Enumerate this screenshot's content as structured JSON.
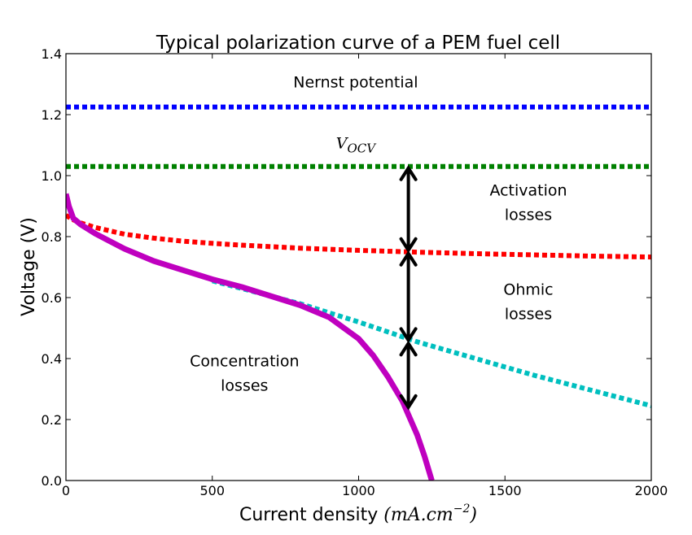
{
  "chart_data": {
    "type": "line",
    "title": "Typical polarization curve of a PEM fuel cell",
    "xlabel": "Current density",
    "xlabel_unit": "mA.cm",
    "xlabel_unit_exp": "−2",
    "ylabel": "Voltage (V)",
    "xlim": [
      0,
      2000
    ],
    "ylim": [
      0.0,
      1.4
    ],
    "xticks": [
      0,
      500,
      1000,
      1500,
      2000
    ],
    "yticks": [
      0.0,
      0.2,
      0.4,
      0.6,
      0.8,
      1.0,
      1.2,
      1.4
    ],
    "ytick_labels": [
      "0.0",
      "0.2",
      "0.4",
      "0.6",
      "0.8",
      "1.0",
      "1.2",
      "1.4"
    ],
    "grid": false,
    "series": [
      {
        "color": "#0000ff",
        "style": "dotted",
        "x": [
          0,
          2000
        ],
        "y": [
          1.225,
          1.225
        ]
      },
      {
        "color": "#008000",
        "style": "dotted",
        "x": [
          0,
          2000
        ],
        "y": [
          1.03,
          1.03
        ]
      },
      {
        "color": "#ff0000",
        "style": "dotted",
        "x": [
          0,
          25,
          50,
          100,
          200,
          300,
          400,
          500,
          600,
          800,
          1000,
          1200,
          1400,
          1600,
          1800,
          2000
        ],
        "y": [
          0.87,
          0.855,
          0.845,
          0.83,
          0.808,
          0.795,
          0.785,
          0.778,
          0.772,
          0.762,
          0.755,
          0.749,
          0.744,
          0.74,
          0.736,
          0.733
        ]
      },
      {
        "color": "#00bfbf",
        "style": "dotted",
        "x": [
          500,
          600,
          700,
          800,
          900,
          1000,
          1200,
          1400,
          1600,
          1800,
          2000
        ],
        "y": [
          0.655,
          0.63,
          0.605,
          0.58,
          0.55,
          0.52,
          0.455,
          0.4,
          0.345,
          0.295,
          0.245
        ]
      },
      {
        "color": "#bf00bf",
        "style": "solid",
        "x": [
          0,
          10,
          25,
          50,
          100,
          200,
          300,
          400,
          500,
          600,
          700,
          800,
          900,
          1000,
          1050,
          1100,
          1150,
          1200,
          1225,
          1250
        ],
        "y": [
          0.94,
          0.9,
          0.86,
          0.84,
          0.81,
          0.76,
          0.72,
          0.69,
          0.66,
          0.635,
          0.605,
          0.575,
          0.535,
          0.465,
          0.41,
          0.34,
          0.26,
          0.15,
          0.08,
          0.0
        ]
      }
    ],
    "annotations": [
      {
        "text": "Nernst potential",
        "x": 990,
        "y": 1.29
      },
      {
        "text": "V",
        "sub": "OCV",
        "x": 990,
        "y": 1.09
      },
      {
        "text": "Activation",
        "x": 1580,
        "y": 0.935
      },
      {
        "text": "losses",
        "x": 1580,
        "y": 0.855
      },
      {
        "text": "Ohmic",
        "x": 1580,
        "y": 0.61
      },
      {
        "text": "losses",
        "x": 1580,
        "y": 0.53
      },
      {
        "text": "Concentration",
        "x": 610,
        "y": 0.375
      },
      {
        "text": "losses",
        "x": 610,
        "y": 0.295
      }
    ],
    "arrows": [
      {
        "x": 1170,
        "y1": 1.03,
        "y2": 0.75
      },
      {
        "x": 1170,
        "y1": 0.75,
        "y2": 0.455
      },
      {
        "x": 1170,
        "y1": 0.455,
        "y2": 0.235
      }
    ]
  }
}
